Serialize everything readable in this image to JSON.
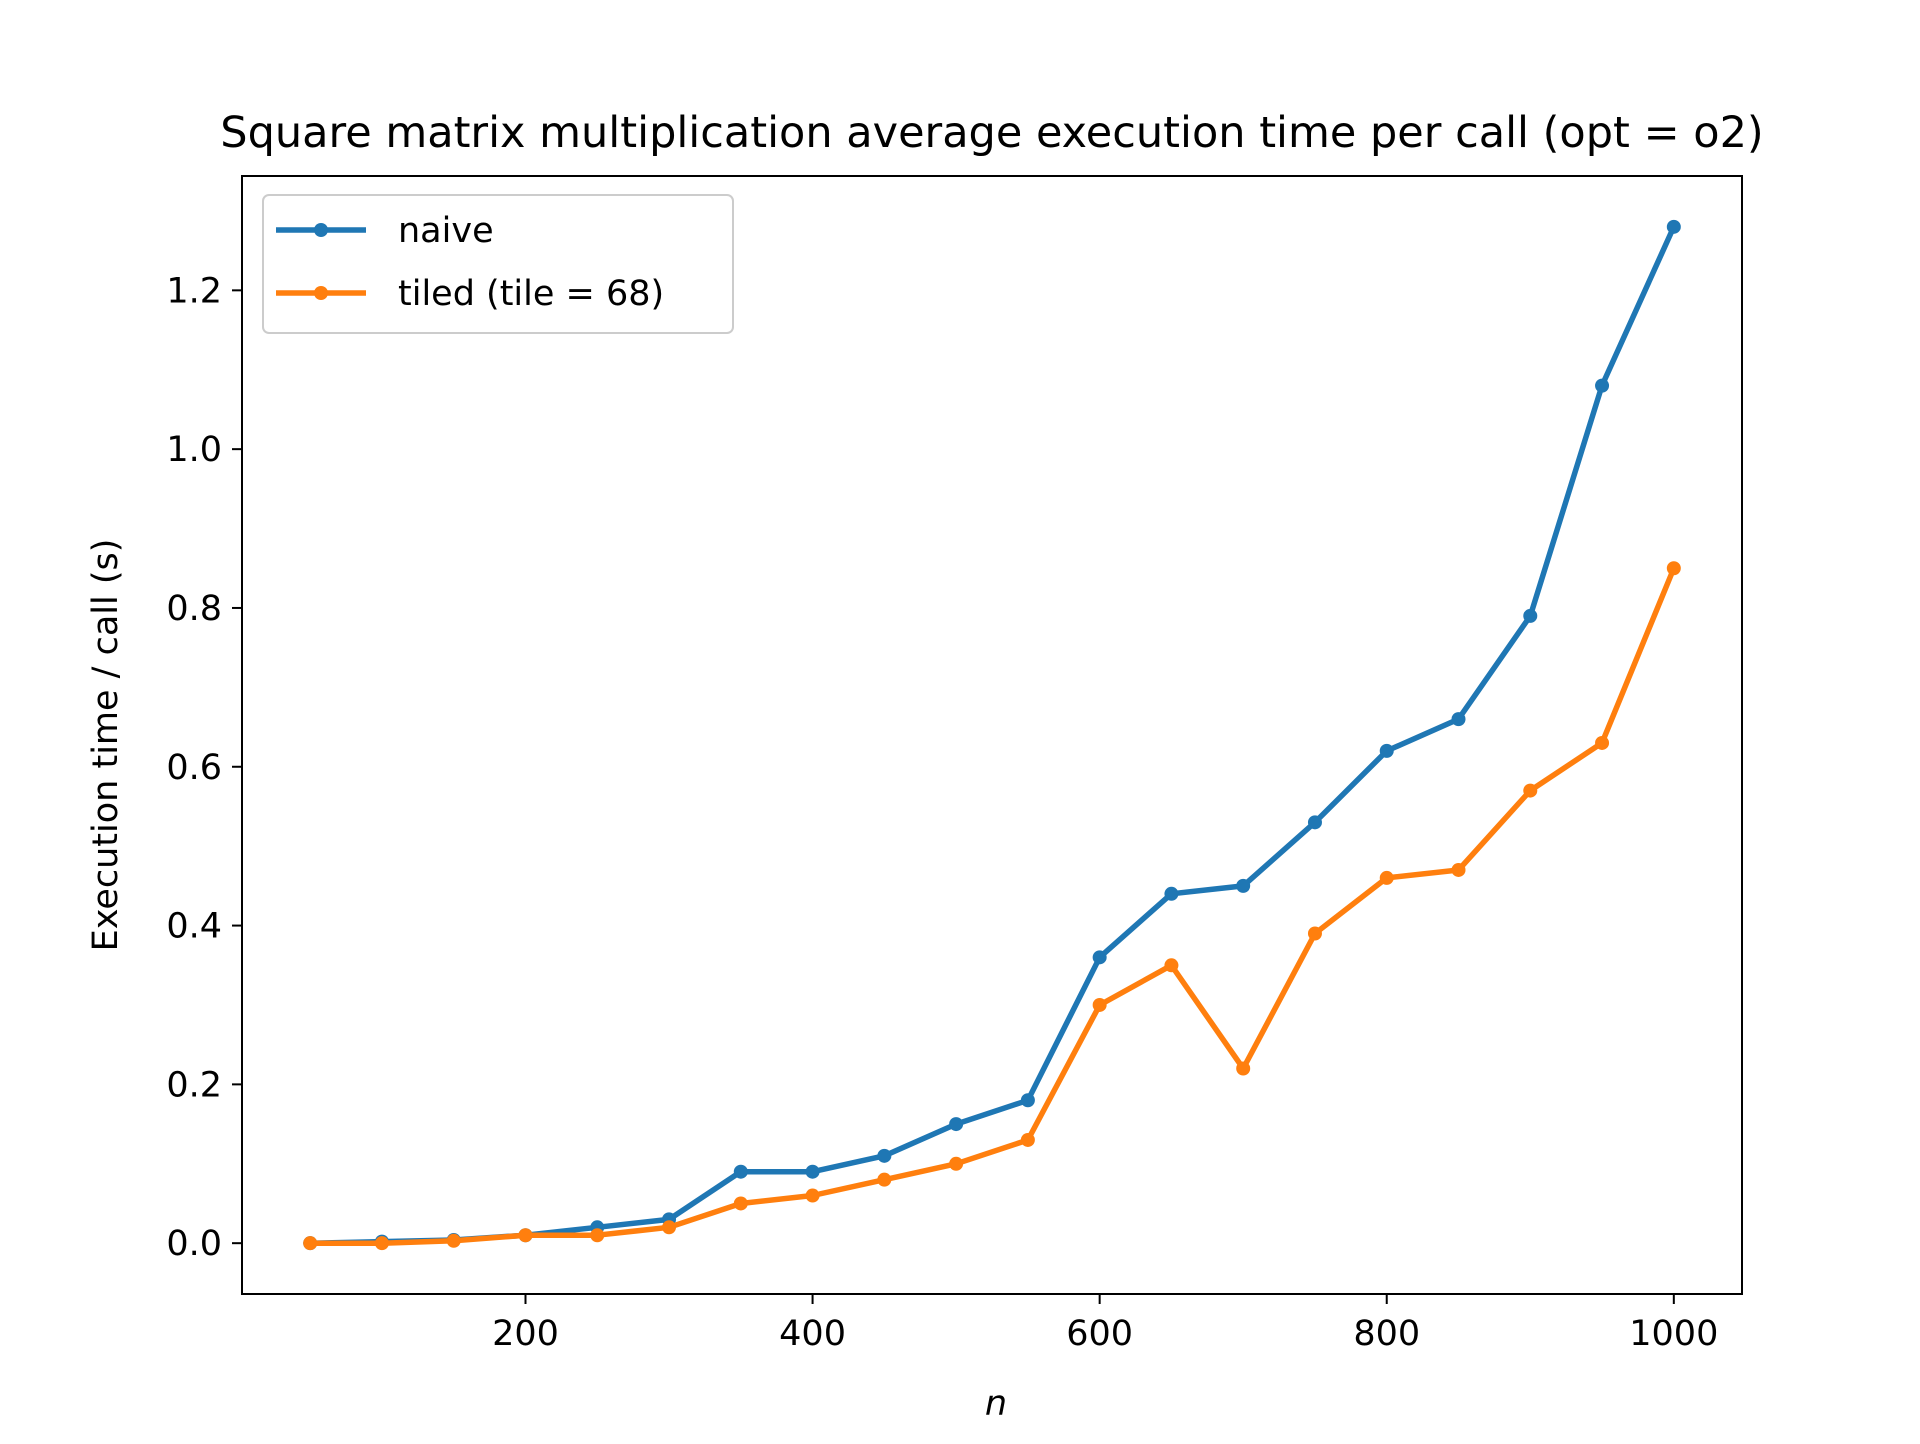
{
  "chart_data": {
    "type": "line",
    "title": "Square matrix multiplication average execution time per call (opt = o2)",
    "xlabel": "n",
    "ylabel": "Execution time / call (s)",
    "x": [
      50,
      100,
      150,
      200,
      250,
      300,
      350,
      400,
      450,
      500,
      550,
      600,
      650,
      700,
      750,
      800,
      850,
      900,
      950,
      1000
    ],
    "xlim": [
      2.5,
      1047.5
    ],
    "ylim": [
      -0.064,
      1.344
    ],
    "xticks": [
      200,
      400,
      600,
      800,
      1000
    ],
    "xtick_labels": [
      "200",
      "400",
      "600",
      "800",
      "1000"
    ],
    "yticks": [
      0.0,
      0.2,
      0.4,
      0.6,
      0.8,
      1.0,
      1.2
    ],
    "ytick_labels": [
      "0.0",
      "0.2",
      "0.4",
      "0.6",
      "0.8",
      "1.0",
      "1.2"
    ],
    "grid": false,
    "legend_position": "upper-left",
    "series": [
      {
        "name": "naive",
        "color": "#1f77b4",
        "values": [
          0.0,
          0.002,
          0.004,
          0.01,
          0.02,
          0.03,
          0.09,
          0.09,
          0.11,
          0.15,
          0.18,
          0.36,
          0.44,
          0.45,
          0.53,
          0.62,
          0.66,
          0.79,
          1.08,
          1.28
        ]
      },
      {
        "name": "tiled (tile = 68)",
        "color": "#ff7f0e",
        "values": [
          0.0,
          0.0,
          0.003,
          0.01,
          0.01,
          0.02,
          0.05,
          0.06,
          0.08,
          0.1,
          0.13,
          0.3,
          0.35,
          0.22,
          0.39,
          0.46,
          0.47,
          0.57,
          0.63,
          0.85
        ]
      }
    ]
  }
}
